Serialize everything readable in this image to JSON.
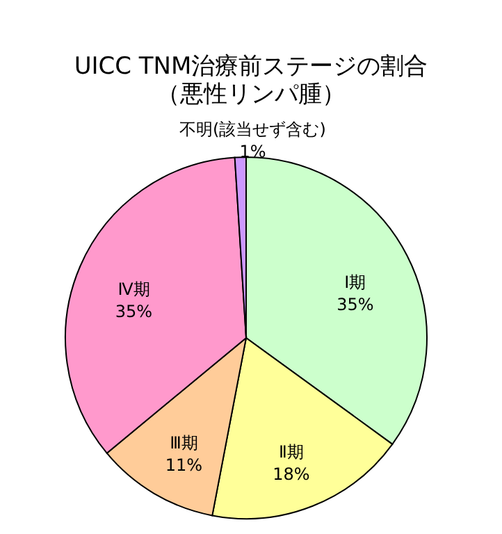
{
  "chart_data": {
    "type": "pie",
    "title": "UICC TNM治療前ステージの割合",
    "subtitle": "（悪性リンパ腫）",
    "categories": [
      "Ⅰ期",
      "Ⅱ期",
      "Ⅲ期",
      "Ⅳ期",
      "不明(該当せず含む)"
    ],
    "values": [
      35,
      18,
      11,
      35,
      1
    ],
    "value_labels": [
      "35%",
      "18%",
      "11%",
      "35%",
      "1%"
    ],
    "colors": [
      "#ccffcc",
      "#ffff99",
      "#ffcc99",
      "#ff99cc",
      "#cc99ff"
    ],
    "legend": false
  }
}
